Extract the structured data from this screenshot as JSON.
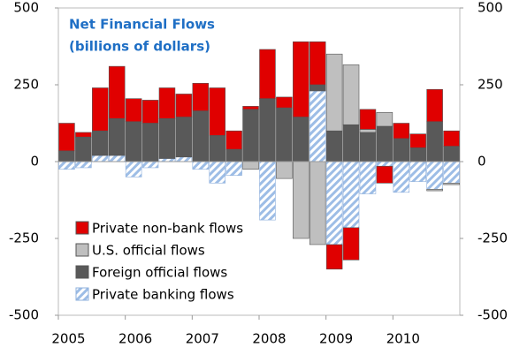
{
  "chart_data": {
    "type": "bar",
    "stacked": true,
    "title": "Net Financial Flows",
    "subtitle": "(billions of dollars)",
    "categories": [
      "2005",
      null,
      null,
      null,
      "2006",
      null,
      null,
      null,
      "2007",
      null,
      null,
      null,
      "2008",
      null,
      null,
      null,
      "2009",
      null,
      null,
      null,
      "2010",
      null,
      null,
      null
    ],
    "series": [
      {
        "name": "Private non-bank flows",
        "color": "#e00000",
        "values": [
          90,
          15,
          140,
          170,
          75,
          75,
          100,
          75,
          90,
          155,
          60,
          10,
          160,
          35,
          245,
          140,
          -80,
          -105,
          65,
          -55,
          50,
          45,
          105,
          50
        ]
      },
      {
        "name": "U.S. official flows",
        "color": "#bfbfbf",
        "values": [
          0,
          0,
          0,
          0,
          0,
          0,
          0,
          0,
          0,
          0,
          0,
          -25,
          0,
          -55,
          -250,
          -270,
          250,
          195,
          10,
          45,
          0,
          0,
          -5,
          -5
        ]
      },
      {
        "name": "Foreign official flows",
        "color": "#595959",
        "values": [
          35,
          80,
          80,
          120,
          130,
          125,
          130,
          130,
          165,
          85,
          40,
          170,
          205,
          175,
          145,
          20,
          100,
          120,
          95,
          115,
          75,
          45,
          130,
          50
        ]
      },
      {
        "name": "Private banking flows",
        "color": "#c5d9f1",
        "hatch": true,
        "values": [
          -25,
          -20,
          20,
          20,
          -50,
          -20,
          10,
          15,
          -25,
          -70,
          -45,
          0,
          -190,
          0,
          0,
          230,
          -270,
          -215,
          -105,
          -15,
          -100,
          -65,
          -90,
          -70
        ]
      }
    ],
    "ylim": [
      -500,
      500
    ],
    "yticks": [
      -500,
      -250,
      0,
      250,
      500
    ],
    "y2lim": [
      -500,
      500
    ],
    "y2ticks": [
      -500,
      -250,
      0,
      250,
      500
    ],
    "grid": false,
    "legend": "lower left"
  }
}
